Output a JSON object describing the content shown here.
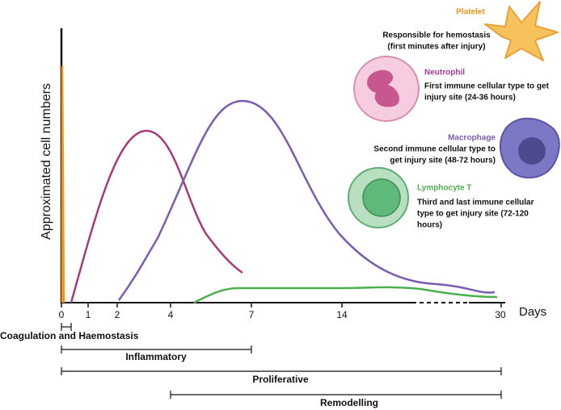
{
  "axes": {
    "y_label": "Approximated cell numbers",
    "x_label": "Days",
    "x_ticks": [
      "0",
      "1",
      "2",
      "4",
      "7",
      "14",
      "30"
    ]
  },
  "cells": [
    {
      "name": "Platelet",
      "lines": [
        "Responsible for hemostasis",
        "(first minutes after injury)"
      ]
    },
    {
      "name": "Neutrophil",
      "lines": [
        "First immune cellular type to get",
        "injury site (24-36 hours)"
      ]
    },
    {
      "name": "Macrophage",
      "lines": [
        "Second immune cellular type to",
        "get injury site (48-72 hours)"
      ]
    },
    {
      "name": "Lymphocyte T",
      "lines": [
        "Third and last immune cellular",
        "type to get injury site (72-120",
        "hours)"
      ]
    }
  ],
  "phases": [
    "Coagulation and Haemostasis",
    "Inflammatory",
    "Proliferative",
    "Remodelling"
  ]
}
